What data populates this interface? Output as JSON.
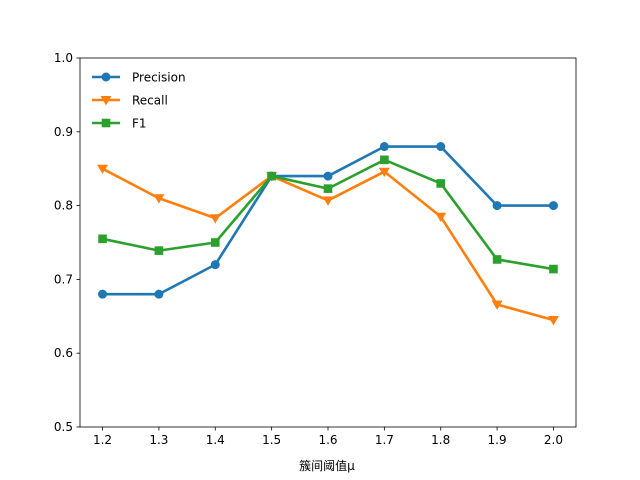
{
  "chart_data": {
    "type": "line",
    "title": "",
    "xlabel": "簇间阈值μ",
    "ylabel": "",
    "x": [
      1.2,
      1.3,
      1.4,
      1.5,
      1.6,
      1.7,
      1.8,
      1.9,
      2.0
    ],
    "x_tick_labels": [
      "1.2",
      "1.3",
      "1.4",
      "1.5",
      "1.6",
      "1.7",
      "1.8",
      "1.9",
      "2.0"
    ],
    "ylim": [
      0.5,
      1.0
    ],
    "y_ticks": [
      0.5,
      0.6,
      0.7,
      0.8,
      0.9,
      1.0
    ],
    "y_tick_labels": [
      "0.5",
      "0.6",
      "0.7",
      "0.8",
      "0.9",
      "1.0"
    ],
    "grid": false,
    "legend_position": "top-left",
    "series": [
      {
        "name": "Precision",
        "color": "#1f77b4",
        "marker": "circle",
        "values": [
          0.68,
          0.68,
          0.72,
          0.84,
          0.84,
          0.88,
          0.88,
          0.8,
          0.8
        ]
      },
      {
        "name": "Recall",
        "color": "#ff7f0e",
        "marker": "triangle-down",
        "values": [
          0.85,
          0.81,
          0.783,
          0.84,
          0.807,
          0.846,
          0.785,
          0.666,
          0.645
        ]
      },
      {
        "name": "F1",
        "color": "#2ca02c",
        "marker": "square",
        "values": [
          0.755,
          0.739,
          0.75,
          0.84,
          0.823,
          0.862,
          0.83,
          0.727,
          0.714
        ]
      }
    ]
  }
}
